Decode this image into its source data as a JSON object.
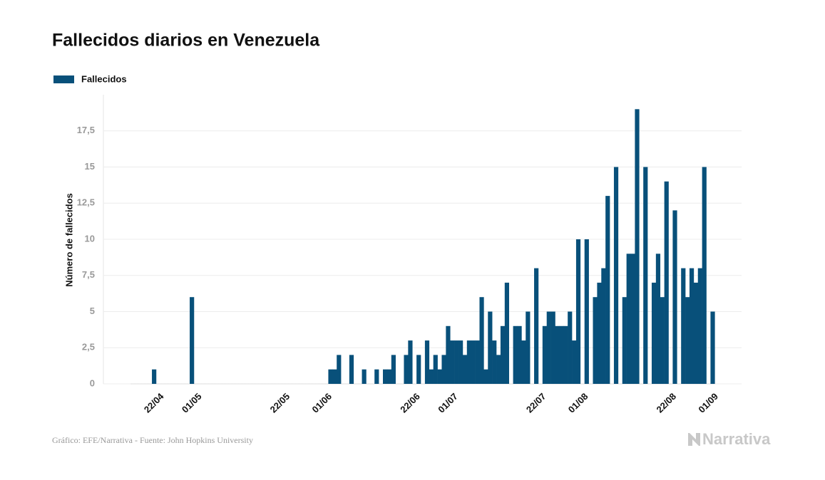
{
  "chart_data": {
    "type": "bar",
    "title": "Fallecidos diarios en Venezuela",
    "y_label": "Número de fallecidos",
    "source": "Gráfico: EFE/Narrativa - Fuente: John Hopkins University",
    "logo": "Narrativa",
    "legend": "top-left",
    "grid": true,
    "ylim": [
      0,
      20
    ],
    "yticks": [
      0,
      {
        "value": 2.5,
        "label": "2,5"
      },
      5,
      {
        "value": 7.5,
        "label": "7,5"
      },
      10,
      {
        "value": 12.5,
        "label": "12,5"
      },
      15,
      {
        "value": 17.5,
        "label": "17,5"
      }
    ],
    "categories": [
      null,
      null,
      null,
      null,
      null,
      "22/04",
      null,
      null,
      null,
      null,
      null,
      null,
      null,
      null,
      "01/05",
      null,
      null,
      null,
      null,
      null,
      null,
      null,
      null,
      null,
      null,
      null,
      null,
      null,
      null,
      null,
      null,
      null,
      null,
      null,
      null,
      "22/05",
      null,
      null,
      null,
      null,
      null,
      null,
      null,
      null,
      null,
      "01/06",
      null,
      null,
      null,
      null,
      null,
      null,
      null,
      null,
      null,
      null,
      null,
      null,
      null,
      null,
      null,
      null,
      null,
      null,
      null,
      null,
      "22/06",
      null,
      null,
      null,
      null,
      null,
      null,
      null,
      null,
      "01/07",
      null,
      null,
      null,
      null,
      null,
      null,
      null,
      null,
      null,
      null,
      null,
      null,
      null,
      null,
      null,
      null,
      null,
      null,
      null,
      null,
      "22/07",
      null,
      null,
      null,
      null,
      null,
      null,
      null,
      null,
      null,
      "01/08",
      null,
      null,
      null,
      null,
      null,
      null,
      null,
      null,
      null,
      null,
      null,
      null,
      null,
      null,
      null,
      null,
      null,
      null,
      null,
      null,
      "22/08",
      null,
      null,
      null,
      null,
      null,
      null,
      null,
      null,
      null,
      "01/09",
      null
    ],
    "series": [
      {
        "name": "Fallecidos",
        "color": "#08507a",
        "values": [
          0,
          0,
          0,
          0,
          0,
          1,
          0,
          0,
          0,
          0,
          0,
          0,
          0,
          0,
          6,
          0,
          0,
          0,
          0,
          0,
          0,
          0,
          0,
          0,
          0,
          0,
          0,
          0,
          0,
          0,
          0,
          0,
          0,
          0,
          0,
          0,
          0,
          0,
          0,
          0,
          0,
          0,
          0,
          0,
          0,
          0,
          0,
          1,
          1,
          2,
          0,
          0,
          2,
          0,
          0,
          1,
          0,
          0,
          1,
          0,
          1,
          1,
          2,
          0,
          0,
          2,
          3,
          0,
          2,
          0,
          3,
          1,
          2,
          1,
          2,
          4,
          3,
          3,
          3,
          2,
          3,
          3,
          3,
          6,
          1,
          5,
          3,
          2,
          4,
          7,
          0,
          4,
          4,
          3,
          5,
          0,
          8,
          0,
          4,
          5,
          5,
          4,
          4,
          4,
          5,
          3,
          10,
          0,
          10,
          0,
          6,
          7,
          8,
          13,
          0,
          15,
          0,
          6,
          9,
          9,
          19,
          0,
          15,
          0,
          7,
          9,
          6,
          14,
          0,
          12,
          0,
          8,
          6,
          8,
          7,
          8,
          15,
          0,
          5
        ]
      }
    ]
  }
}
